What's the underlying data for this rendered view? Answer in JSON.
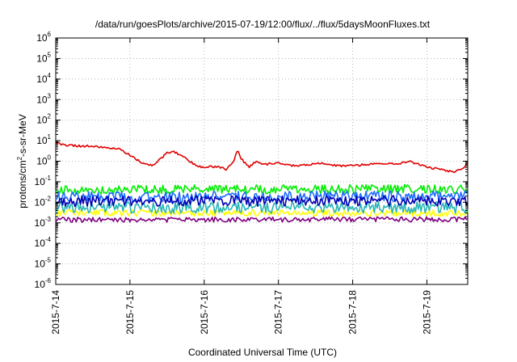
{
  "chart_data": {
    "type": "line",
    "title": "/data/run/goesPlots/archive/2015-07-19/12:00/flux/../flux/5daysMoonFluxes.txt",
    "xlabel": "Coordinated Universal Time (UTC)",
    "ylabel": {
      "prefix": "protons/cm",
      "superscript": "2",
      "suffix": "-s-sr-MeV"
    },
    "yscale": "log",
    "ylim_exponents": [
      -6,
      6
    ],
    "y_tick_exponents": [
      -6,
      -5,
      -4,
      -3,
      -2,
      -1,
      0,
      1,
      2,
      3,
      4,
      5,
      6
    ],
    "y_tick_base": "10",
    "xlim_days": [
      0,
      5.55
    ],
    "x_ticks": [
      {
        "label": "2015-7-14",
        "day": 0
      },
      {
        "label": "2015-7-15",
        "day": 1
      },
      {
        "label": "2015-7-16",
        "day": 2
      },
      {
        "label": "2015-7-17",
        "day": 3
      },
      {
        "label": "2015-7-18",
        "day": 4
      },
      {
        "label": "2015-7-19",
        "day": 5
      }
    ],
    "grid": true,
    "series": [
      {
        "color": "#ffff00",
        "noise": 0.16,
        "seed": 11,
        "day": [
          0,
          5.55
        ],
        "value": [
          0.003,
          0.003
        ]
      },
      {
        "color": "#2ab5b5",
        "noise": 0.28,
        "seed": 23,
        "day": [
          0,
          5.55
        ],
        "value": [
          0.0055,
          0.0055
        ]
      },
      {
        "color": "#800080",
        "noise": 0.12,
        "seed": 37,
        "day": [
          0,
          5.55
        ],
        "value": [
          0.0014,
          0.0015
        ]
      },
      {
        "color": "#00ee00",
        "noise": 0.22,
        "seed": 41,
        "day": [
          0,
          5.55
        ],
        "value": [
          0.04,
          0.045
        ]
      },
      {
        "color": "#1e6dff",
        "noise": 0.26,
        "seed": 53,
        "day": [
          0,
          5.55
        ],
        "value": [
          0.018,
          0.02
        ]
      },
      {
        "color": "#0000b4",
        "noise": 0.26,
        "seed": 67,
        "day": [
          0,
          5.55
        ],
        "value": [
          0.011,
          0.012
        ]
      },
      {
        "color": "#e00000",
        "noise": 0.05,
        "seed": 79,
        "day": [
          0,
          0.15,
          0.3,
          0.5,
          0.7,
          0.85,
          1.0,
          1.15,
          1.3,
          1.4,
          1.5,
          1.6,
          1.7,
          1.8,
          1.9,
          2.0,
          2.1,
          2.2,
          2.3,
          2.4,
          2.45,
          2.5,
          2.6,
          2.7,
          2.8,
          3.0,
          3.2,
          3.4,
          3.6,
          3.8,
          4.0,
          4.2,
          4.4,
          4.6,
          4.75,
          4.85,
          5.0,
          5.2,
          5.35,
          5.5,
          5.55
        ],
        "value": [
          8,
          6,
          5.5,
          5.5,
          4.5,
          4.2,
          2.0,
          0.9,
          0.6,
          1.2,
          2.5,
          2.8,
          1.8,
          1.0,
          0.6,
          0.5,
          0.55,
          0.5,
          0.4,
          1.1,
          4.0,
          1.3,
          0.5,
          1.0,
          0.7,
          0.8,
          0.6,
          0.7,
          0.8,
          0.6,
          0.6,
          0.7,
          0.8,
          0.7,
          1.0,
          0.8,
          0.5,
          0.4,
          0.3,
          0.45,
          0.85
        ]
      }
    ]
  }
}
